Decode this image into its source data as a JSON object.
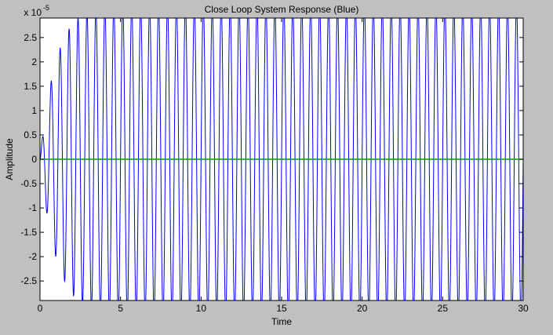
{
  "chart_data": {
    "type": "line",
    "title": "Close Loop System Response (Blue)",
    "xlabel": "Time",
    "ylabel": "Amplitude",
    "y_exponent_label": "x 10",
    "y_exponent": "-5",
    "xlim": [
      0,
      30
    ],
    "ylim": [
      -2.9e-05,
      2.9e-05
    ],
    "grid": false,
    "xticks": [
      0,
      5,
      10,
      15,
      20,
      25,
      30
    ],
    "xtick_labels": [
      "0",
      "5",
      "10",
      "15",
      "20",
      "25",
      "30"
    ],
    "yticks": [
      2.5,
      2,
      1.5,
      1,
      0.5,
      0,
      -0.5,
      -1,
      -1.5,
      -2,
      -2.5
    ],
    "ytick_labels": [
      "2.5",
      "2",
      "1.5",
      "1",
      "0.5",
      "0",
      "-0.5",
      "-1",
      "-1.5",
      "-2",
      "-2.5"
    ],
    "series": [
      {
        "color": "#0000ff",
        "kind": "growing-oscillation",
        "frequency_hz": 1.8,
        "growth_time_constant": 1.0,
        "envelope_max": 3.2e-05,
        "x_range": [
          0,
          30
        ]
      },
      {
        "color": "#00a000",
        "kind": "constant",
        "value": 0,
        "x_range": [
          0,
          30
        ]
      }
    ]
  }
}
